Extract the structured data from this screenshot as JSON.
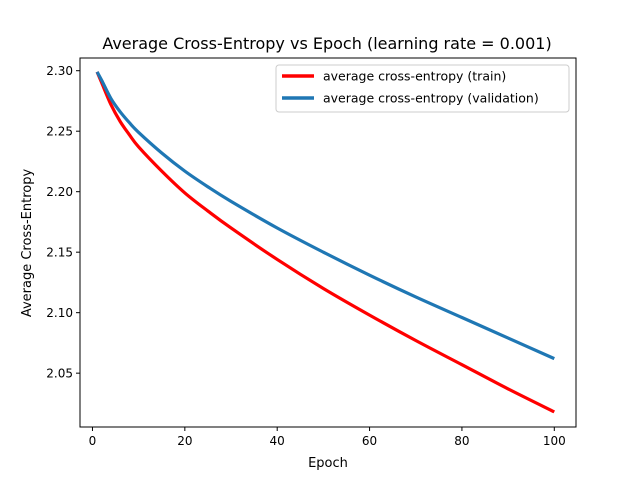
{
  "chart_data": {
    "type": "line",
    "title": "Average Cross-Entropy vs Epoch (learning rate = 0.001)",
    "xlabel": "Epoch",
    "ylabel": "Average Cross-Entropy",
    "xlim": [
      -2.7,
      104.7
    ],
    "ylim": [
      2.0055,
      2.3105
    ],
    "x_ticks": [
      0,
      20,
      40,
      60,
      80,
      100
    ],
    "y_ticks": [
      2.05,
      2.1,
      2.15,
      2.2,
      2.25,
      2.3
    ],
    "y_tick_labels": [
      "2.05",
      "2.10",
      "2.15",
      "2.20",
      "2.25",
      "2.30"
    ],
    "x_tick_labels": [
      "0",
      "20",
      "40",
      "60",
      "80",
      "100"
    ],
    "grid": false,
    "legend_position": "top-right",
    "x": [
      1,
      2,
      4,
      6,
      8,
      10,
      15,
      20,
      25,
      30,
      40,
      50,
      60,
      70,
      80,
      90,
      100
    ],
    "series": [
      {
        "name": "average cross-entropy (train)",
        "color": "#ff0000",
        "values": [
          2.299,
          2.29,
          2.272,
          2.258,
          2.247,
          2.237,
          2.217,
          2.199,
          2.184,
          2.17,
          2.144,
          2.12,
          2.098,
          2.077,
          2.057,
          2.037,
          2.018
        ]
      },
      {
        "name": "average cross-entropy (validation)",
        "color": "#1f77b4",
        "values": [
          2.299,
          2.292,
          2.277,
          2.266,
          2.257,
          2.249,
          2.232,
          2.217,
          2.204,
          2.192,
          2.17,
          2.15,
          2.131,
          2.113,
          2.096,
          2.079,
          2.062
        ]
      }
    ]
  }
}
